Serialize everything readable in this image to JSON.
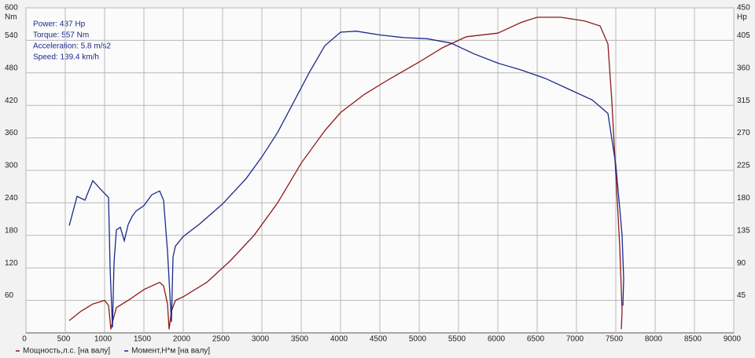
{
  "chart_data": {
    "type": "line",
    "info": [
      "Power: 437 Hp",
      "Torque: 557 Nm",
      "Acceleration: 5.8 m/s2",
      "Speed: 139.4 km/h"
    ],
    "y_unit": "Nm",
    "y2_unit": "Hp",
    "xlim": [
      0,
      9000
    ],
    "xticks": [
      0,
      500,
      1000,
      1500,
      2000,
      2500,
      3000,
      3500,
      4000,
      4500,
      5000,
      5500,
      6000,
      6500,
      7000,
      7500,
      8000,
      8500,
      9000
    ],
    "ylim": [
      0,
      600
    ],
    "yticks": [
      60,
      120,
      180,
      240,
      300,
      360,
      420,
      480,
      540,
      600
    ],
    "y2lim": [
      0,
      450
    ],
    "y2ticks": [
      45,
      90,
      135,
      180,
      225,
      270,
      315,
      360,
      405,
      450
    ],
    "grid": true,
    "series": [
      {
        "name": "Мощность,л.с. [на валу]",
        "color": "#8b1a1a",
        "axis": "y2",
        "x": [
          550,
          700,
          850,
          1000,
          1050,
          1080,
          1100,
          1150,
          1300,
          1500,
          1700,
          1750,
          1800,
          1820,
          1850,
          1900,
          2000,
          2300,
          2600,
          2900,
          3200,
          3500,
          3800,
          4000,
          4300,
          4600,
          5000,
          5300,
          5600,
          6000,
          6300,
          6500,
          6800,
          7100,
          7300,
          7400,
          7450,
          7500,
          7550,
          7580,
          7570
        ],
        "values": [
          17,
          30,
          40,
          45,
          38,
          5,
          15,
          35,
          45,
          60,
          70,
          65,
          40,
          5,
          30,
          45,
          50,
          70,
          100,
          135,
          180,
          235,
          280,
          305,
          330,
          350,
          375,
          395,
          410,
          415,
          430,
          437,
          437,
          432,
          425,
          400,
          320,
          220,
          120,
          30,
          5
        ]
      },
      {
        "name": "Момент,Н*м [на валу]",
        "color": "#1a2a8c",
        "axis": "y",
        "x": [
          550,
          650,
          750,
          850,
          950,
          1050,
          1070,
          1100,
          1120,
          1150,
          1200,
          1250,
          1300,
          1350,
          1400,
          1500,
          1600,
          1700,
          1750,
          1800,
          1850,
          1870,
          1900,
          2000,
          2200,
          2500,
          2800,
          3000,
          3200,
          3400,
          3600,
          3800,
          4000,
          4200,
          4500,
          4800,
          5100,
          5400,
          5700,
          6000,
          6300,
          6600,
          6900,
          7200,
          7400,
          7500,
          7550,
          7580,
          7600,
          7590
        ],
        "values": [
          198,
          252,
          245,
          281,
          265,
          250,
          120,
          10,
          130,
          190,
          195,
          170,
          200,
          215,
          225,
          235,
          255,
          262,
          245,
          150,
          20,
          140,
          160,
          178,
          200,
          238,
          285,
          325,
          370,
          425,
          480,
          530,
          555,
          557,
          550,
          545,
          543,
          535,
          515,
          498,
          485,
          470,
          450,
          430,
          405,
          310,
          230,
          180,
          100,
          50
        ]
      }
    ]
  }
}
